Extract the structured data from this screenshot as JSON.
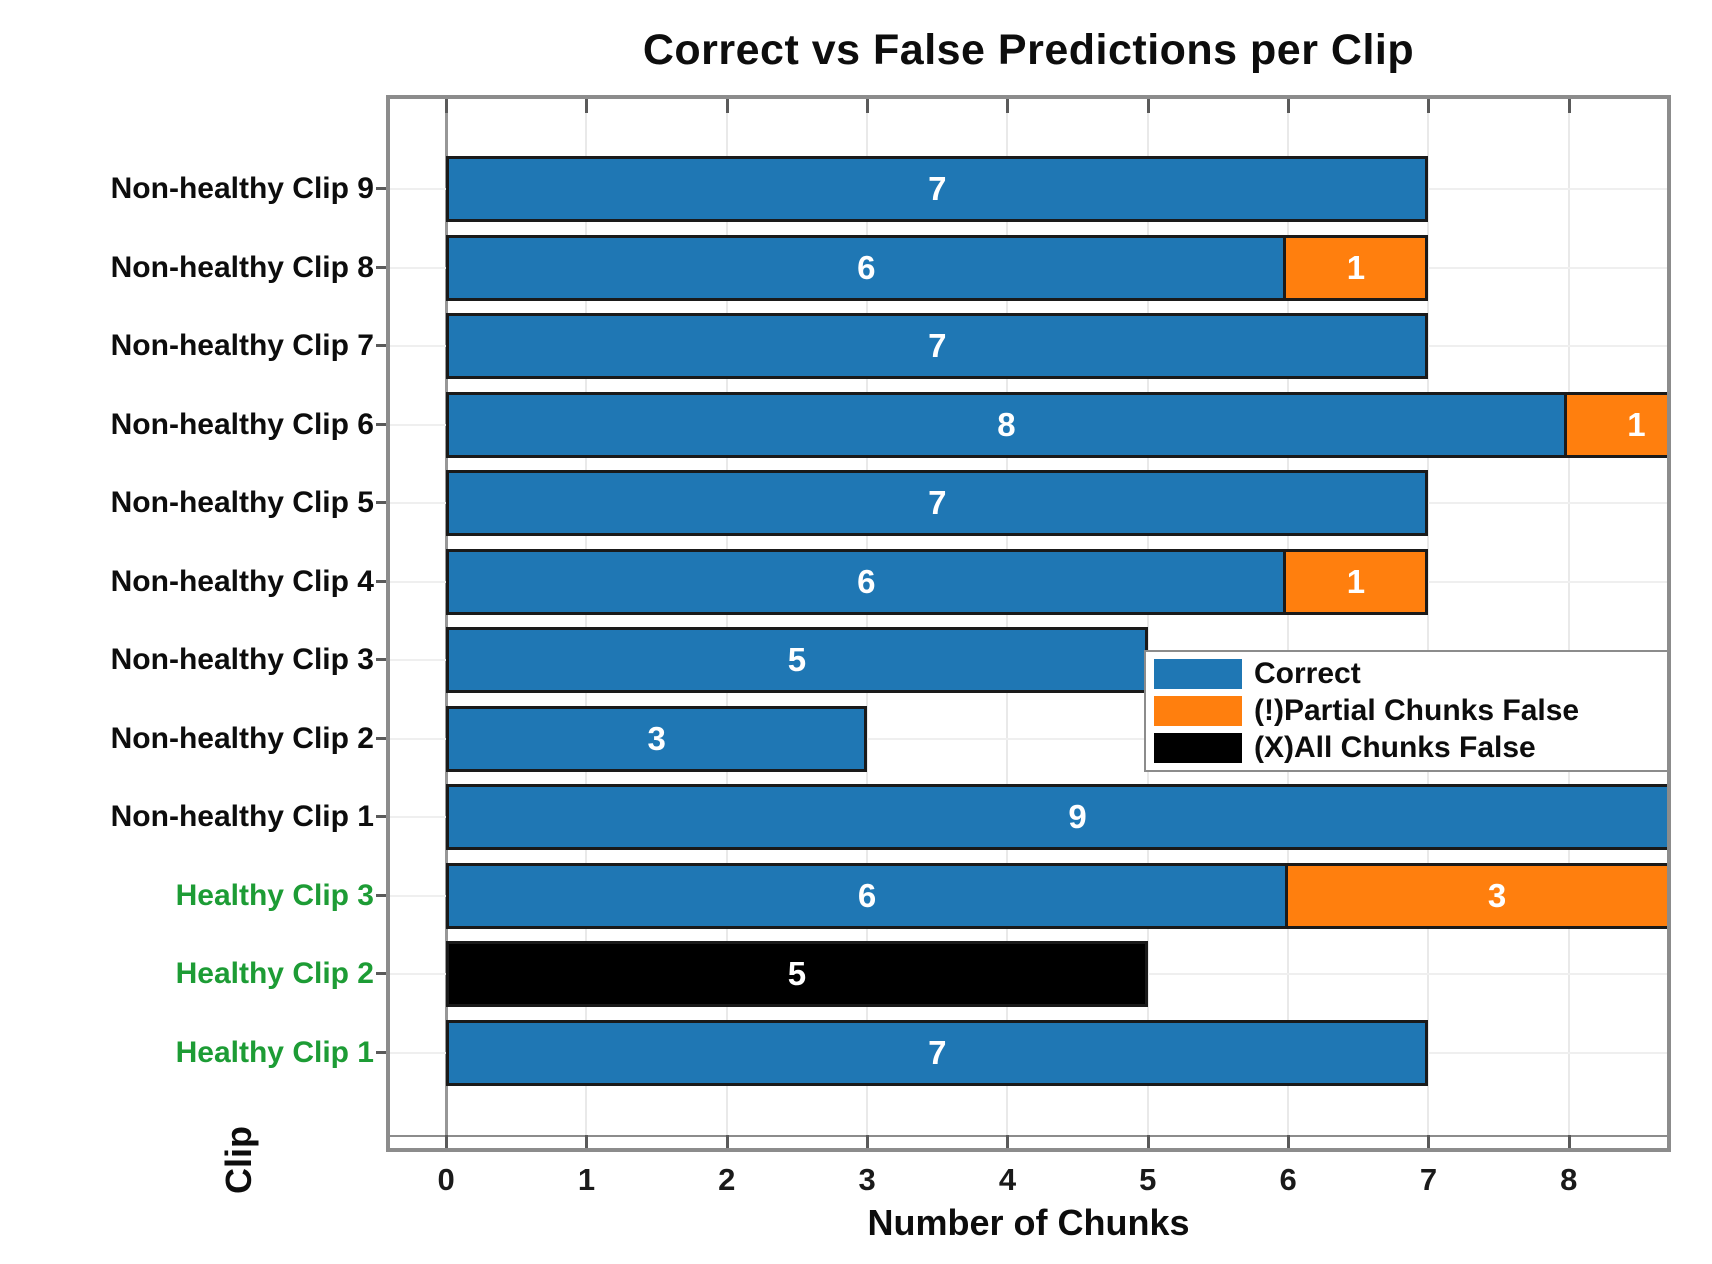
{
  "chart_data": {
    "type": "bar",
    "orientation": "horizontal-stacked",
    "title": "Correct vs False Predictions per Clip",
    "xlabel": "Number of Chunks",
    "ylabel": "Clip",
    "xlim": [
      -0.4,
      8.7
    ],
    "xticks": [
      0,
      1,
      2,
      3,
      4,
      5,
      6,
      7,
      8
    ],
    "grid": true,
    "legend_position": "middle-right-inside",
    "series": [
      {
        "key": "correct",
        "name": "Correct",
        "color": "#1f77b4"
      },
      {
        "key": "partial_false",
        "name": "(!)Partial Chunks False",
        "color": "#ff7f0e"
      },
      {
        "key": "all_false",
        "name": "(X)All Chunks False",
        "color": "#000000"
      }
    ],
    "label_colors": {
      "non_healthy": "#0d0d0d",
      "healthy": "#1d9c35"
    },
    "rows": [
      {
        "label": "Non-healthy Clip 9",
        "group": "non_healthy",
        "values": {
          "correct": 7,
          "partial_false": 0,
          "all_false": 0
        }
      },
      {
        "label": "Non-healthy Clip 8",
        "group": "non_healthy",
        "values": {
          "correct": 6,
          "partial_false": 1,
          "all_false": 0
        }
      },
      {
        "label": "Non-healthy Clip 7",
        "group": "non_healthy",
        "values": {
          "correct": 7,
          "partial_false": 0,
          "all_false": 0
        }
      },
      {
        "label": "Non-healthy Clip 6",
        "group": "non_healthy",
        "values": {
          "correct": 8,
          "partial_false": 1,
          "all_false": 0
        }
      },
      {
        "label": "Non-healthy Clip 5",
        "group": "non_healthy",
        "values": {
          "correct": 7,
          "partial_false": 0,
          "all_false": 0
        }
      },
      {
        "label": "Non-healthy Clip 4",
        "group": "non_healthy",
        "values": {
          "correct": 6,
          "partial_false": 1,
          "all_false": 0
        }
      },
      {
        "label": "Non-healthy Clip 3",
        "group": "non_healthy",
        "values": {
          "correct": 5,
          "partial_false": 0,
          "all_false": 0
        }
      },
      {
        "label": "Non-healthy Clip 2",
        "group": "non_healthy",
        "values": {
          "correct": 3,
          "partial_false": 0,
          "all_false": 0
        }
      },
      {
        "label": "Non-healthy Clip 1",
        "group": "non_healthy",
        "values": {
          "correct": 9,
          "partial_false": 0,
          "all_false": 0
        }
      },
      {
        "label": "Healthy Clip 3",
        "group": "healthy",
        "values": {
          "correct": 6,
          "partial_false": 3,
          "all_false": 0
        }
      },
      {
        "label": "Healthy Clip 2",
        "group": "healthy",
        "values": {
          "correct": 0,
          "partial_false": 0,
          "all_false": 5
        }
      },
      {
        "label": "Healthy Clip 1",
        "group": "healthy",
        "values": {
          "correct": 7,
          "partial_false": 0,
          "all_false": 0
        }
      }
    ]
  }
}
